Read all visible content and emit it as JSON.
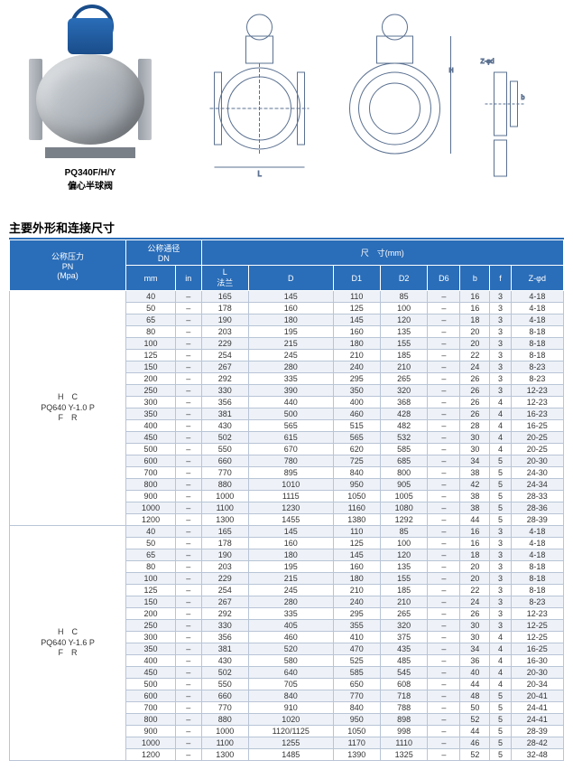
{
  "product": {
    "model": "PQ340F/H/Y",
    "name_cn": "偏心半球阀"
  },
  "section_title": "主要外形和连接尺寸",
  "table": {
    "headers": {
      "pn": "公称压力\nPN\n(Mpa)",
      "dn": "公称通径\nDN",
      "dim": "尺　寸(mm)",
      "mm": "mm",
      "in": "in",
      "L": "L\n法兰",
      "D": "D",
      "D1": "D1",
      "D2": "D2",
      "D6": "D6",
      "b": "b",
      "f": "f",
      "Zd": "Z-φd"
    },
    "groups": [
      {
        "pn_label": "H　C\nPQ640 Y-1.0 P\nF　R",
        "rows": [
          {
            "mm": "40",
            "in": "–",
            "L": "165",
            "D": "145",
            "D1": "110",
            "D2": "85",
            "D6": "–",
            "b": "16",
            "f": "3",
            "Zd": "4-18"
          },
          {
            "mm": "50",
            "in": "–",
            "L": "178",
            "D": "160",
            "D1": "125",
            "D2": "100",
            "D6": "–",
            "b": "16",
            "f": "3",
            "Zd": "4-18"
          },
          {
            "mm": "65",
            "in": "–",
            "L": "190",
            "D": "180",
            "D1": "145",
            "D2": "120",
            "D6": "–",
            "b": "18",
            "f": "3",
            "Zd": "4-18"
          },
          {
            "mm": "80",
            "in": "–",
            "L": "203",
            "D": "195",
            "D1": "160",
            "D2": "135",
            "D6": "–",
            "b": "20",
            "f": "3",
            "Zd": "8-18"
          },
          {
            "mm": "100",
            "in": "–",
            "L": "229",
            "D": "215",
            "D1": "180",
            "D2": "155",
            "D6": "–",
            "b": "20",
            "f": "3",
            "Zd": "8-18"
          },
          {
            "mm": "125",
            "in": "–",
            "L": "254",
            "D": "245",
            "D1": "210",
            "D2": "185",
            "D6": "–",
            "b": "22",
            "f": "3",
            "Zd": "8-18"
          },
          {
            "mm": "150",
            "in": "–",
            "L": "267",
            "D": "280",
            "D1": "240",
            "D2": "210",
            "D6": "–",
            "b": "24",
            "f": "3",
            "Zd": "8-23"
          },
          {
            "mm": "200",
            "in": "–",
            "L": "292",
            "D": "335",
            "D1": "295",
            "D2": "265",
            "D6": "–",
            "b": "26",
            "f": "3",
            "Zd": "8-23"
          },
          {
            "mm": "250",
            "in": "–",
            "L": "330",
            "D": "390",
            "D1": "350",
            "D2": "320",
            "D6": "–",
            "b": "26",
            "f": "3",
            "Zd": "12-23"
          },
          {
            "mm": "300",
            "in": "–",
            "L": "356",
            "D": "440",
            "D1": "400",
            "D2": "368",
            "D6": "–",
            "b": "26",
            "f": "4",
            "Zd": "12-23"
          },
          {
            "mm": "350",
            "in": "–",
            "L": "381",
            "D": "500",
            "D1": "460",
            "D2": "428",
            "D6": "–",
            "b": "26",
            "f": "4",
            "Zd": "16-23"
          },
          {
            "mm": "400",
            "in": "–",
            "L": "430",
            "D": "565",
            "D1": "515",
            "D2": "482",
            "D6": "–",
            "b": "28",
            "f": "4",
            "Zd": "16-25"
          },
          {
            "mm": "450",
            "in": "–",
            "L": "502",
            "D": "615",
            "D1": "565",
            "D2": "532",
            "D6": "–",
            "b": "30",
            "f": "4",
            "Zd": "20-25"
          },
          {
            "mm": "500",
            "in": "–",
            "L": "550",
            "D": "670",
            "D1": "620",
            "D2": "585",
            "D6": "–",
            "b": "30",
            "f": "4",
            "Zd": "20-25"
          },
          {
            "mm": "600",
            "in": "–",
            "L": "660",
            "D": "780",
            "D1": "725",
            "D2": "685",
            "D6": "–",
            "b": "34",
            "f": "5",
            "Zd": "20-30"
          },
          {
            "mm": "700",
            "in": "–",
            "L": "770",
            "D": "895",
            "D1": "840",
            "D2": "800",
            "D6": "–",
            "b": "38",
            "f": "5",
            "Zd": "24-30"
          },
          {
            "mm": "800",
            "in": "–",
            "L": "880",
            "D": "1010",
            "D1": "950",
            "D2": "905",
            "D6": "–",
            "b": "42",
            "f": "5",
            "Zd": "24-34"
          },
          {
            "mm": "900",
            "in": "–",
            "L": "1000",
            "D": "1115",
            "D1": "1050",
            "D2": "1005",
            "D6": "–",
            "b": "38",
            "f": "5",
            "Zd": "28-33"
          },
          {
            "mm": "1000",
            "in": "–",
            "L": "1100",
            "D": "1230",
            "D1": "1160",
            "D2": "1080",
            "D6": "–",
            "b": "38",
            "f": "5",
            "Zd": "28-36"
          },
          {
            "mm": "1200",
            "in": "–",
            "L": "1300",
            "D": "1455",
            "D1": "1380",
            "D2": "1292",
            "D6": "–",
            "b": "44",
            "f": "5",
            "Zd": "28-39"
          }
        ]
      },
      {
        "pn_label": "H　C\nPQ640 Y-1.6 P\nF　R",
        "rows": [
          {
            "mm": "40",
            "in": "–",
            "L": "165",
            "D": "145",
            "D1": "110",
            "D2": "85",
            "D6": "–",
            "b": "16",
            "f": "3",
            "Zd": "4-18"
          },
          {
            "mm": "50",
            "in": "–",
            "L": "178",
            "D": "160",
            "D1": "125",
            "D2": "100",
            "D6": "–",
            "b": "16",
            "f": "3",
            "Zd": "4-18"
          },
          {
            "mm": "65",
            "in": "–",
            "L": "190",
            "D": "180",
            "D1": "145",
            "D2": "120",
            "D6": "–",
            "b": "18",
            "f": "3",
            "Zd": "4-18"
          },
          {
            "mm": "80",
            "in": "–",
            "L": "203",
            "D": "195",
            "D1": "160",
            "D2": "135",
            "D6": "–",
            "b": "20",
            "f": "3",
            "Zd": "8-18"
          },
          {
            "mm": "100",
            "in": "–",
            "L": "229",
            "D": "215",
            "D1": "180",
            "D2": "155",
            "D6": "–",
            "b": "20",
            "f": "3",
            "Zd": "8-18"
          },
          {
            "mm": "125",
            "in": "–",
            "L": "254",
            "D": "245",
            "D1": "210",
            "D2": "185",
            "D6": "–",
            "b": "22",
            "f": "3",
            "Zd": "8-18"
          },
          {
            "mm": "150",
            "in": "–",
            "L": "267",
            "D": "280",
            "D1": "240",
            "D2": "210",
            "D6": "–",
            "b": "24",
            "f": "3",
            "Zd": "8-23"
          },
          {
            "mm": "200",
            "in": "–",
            "L": "292",
            "D": "335",
            "D1": "295",
            "D2": "265",
            "D6": "–",
            "b": "26",
            "f": "3",
            "Zd": "12-23"
          },
          {
            "mm": "250",
            "in": "–",
            "L": "330",
            "D": "405",
            "D1": "355",
            "D2": "320",
            "D6": "–",
            "b": "30",
            "f": "3",
            "Zd": "12-25"
          },
          {
            "mm": "300",
            "in": "–",
            "L": "356",
            "D": "460",
            "D1": "410",
            "D2": "375",
            "D6": "–",
            "b": "30",
            "f": "4",
            "Zd": "12-25"
          },
          {
            "mm": "350",
            "in": "–",
            "L": "381",
            "D": "520",
            "D1": "470",
            "D2": "435",
            "D6": "–",
            "b": "34",
            "f": "4",
            "Zd": "16-25"
          },
          {
            "mm": "400",
            "in": "–",
            "L": "430",
            "D": "580",
            "D1": "525",
            "D2": "485",
            "D6": "–",
            "b": "36",
            "f": "4",
            "Zd": "16-30"
          },
          {
            "mm": "450",
            "in": "–",
            "L": "502",
            "D": "640",
            "D1": "585",
            "D2": "545",
            "D6": "–",
            "b": "40",
            "f": "4",
            "Zd": "20-30"
          },
          {
            "mm": "500",
            "in": "–",
            "L": "550",
            "D": "705",
            "D1": "650",
            "D2": "608",
            "D6": "–",
            "b": "44",
            "f": "4",
            "Zd": "20-34"
          },
          {
            "mm": "600",
            "in": "–",
            "L": "660",
            "D": "840",
            "D1": "770",
            "D2": "718",
            "D6": "–",
            "b": "48",
            "f": "5",
            "Zd": "20-41"
          },
          {
            "mm": "700",
            "in": "–",
            "L": "770",
            "D": "910",
            "D1": "840",
            "D2": "788",
            "D6": "–",
            "b": "50",
            "f": "5",
            "Zd": "24-41"
          },
          {
            "mm": "800",
            "in": "–",
            "L": "880",
            "D": "1020",
            "D1": "950",
            "D2": "898",
            "D6": "–",
            "b": "52",
            "f": "5",
            "Zd": "24-41"
          },
          {
            "mm": "900",
            "in": "–",
            "L": "1000",
            "D": "1120/1125",
            "D1": "1050",
            "D2": "998",
            "D6": "–",
            "b": "44",
            "f": "5",
            "Zd": "28-39"
          },
          {
            "mm": "1000",
            "in": "–",
            "L": "1100",
            "D": "1255",
            "D1": "1170",
            "D2": "1110",
            "D6": "–",
            "b": "46",
            "f": "5",
            "Zd": "28-42"
          },
          {
            "mm": "1200",
            "in": "–",
            "L": "1300",
            "D": "1485",
            "D1": "1390",
            "D2": "1325",
            "D6": "–",
            "b": "52",
            "f": "5",
            "Zd": "32-48"
          }
        ]
      }
    ]
  }
}
